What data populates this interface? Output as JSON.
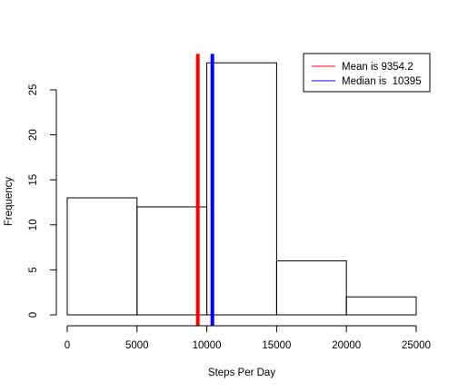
{
  "chart_data": {
    "type": "histogram",
    "title": "",
    "xlabel": "Steps Per Day",
    "ylabel": "Frequency",
    "xlim": [
      0,
      25000
    ],
    "ylim": [
      0,
      28
    ],
    "x_ticks": [
      0,
      5000,
      10000,
      15000,
      20000,
      25000
    ],
    "y_ticks": [
      0,
      5,
      10,
      15,
      20,
      25
    ],
    "bins": [
      {
        "start": 0,
        "end": 5000,
        "count": 13
      },
      {
        "start": 5000,
        "end": 10000,
        "count": 12
      },
      {
        "start": 10000,
        "end": 15000,
        "count": 28
      },
      {
        "start": 15000,
        "end": 20000,
        "count": 6
      },
      {
        "start": 20000,
        "end": 25000,
        "count": 2
      }
    ],
    "reference_lines": [
      {
        "label": "Mean is 9354.2",
        "value": 9354.2,
        "color": "#ff0000"
      },
      {
        "label": "Median is  10395",
        "value": 10395,
        "color": "#0000ff"
      }
    ],
    "legend_position": "top-right",
    "grid": false
  }
}
